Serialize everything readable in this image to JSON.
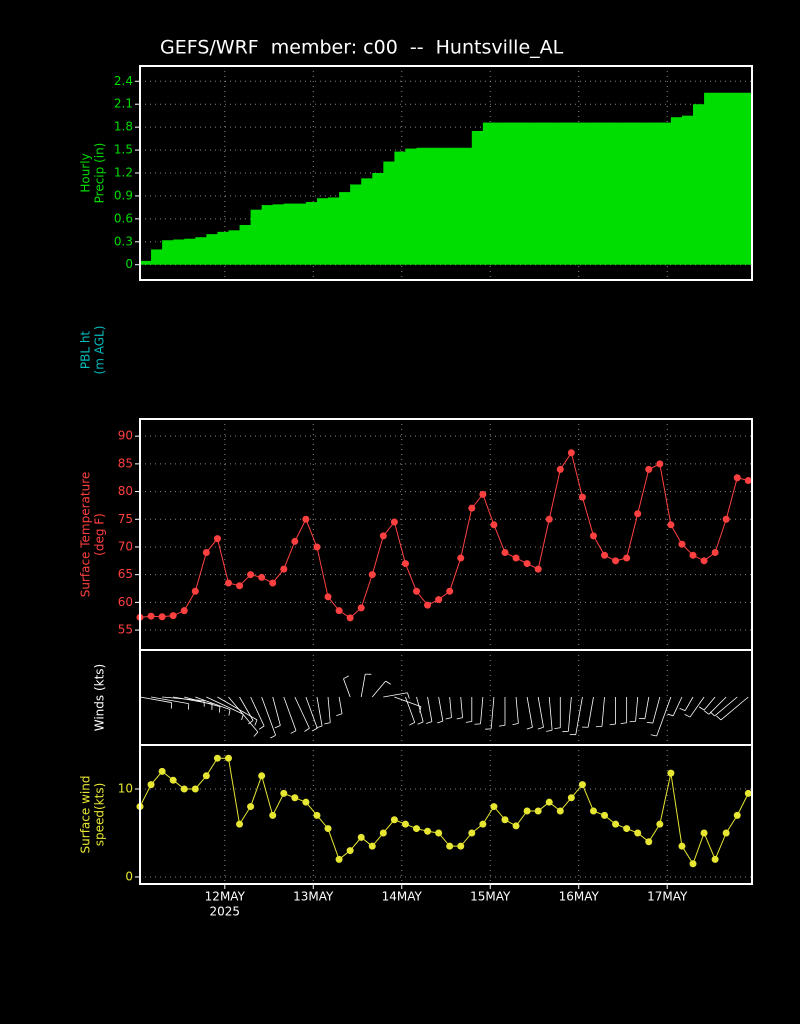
{
  "title": "GEFS/WRF  member: c00  --  Huntsville_AL",
  "chart_data": [
    {
      "type": "step",
      "ylabel": [
        "Hourly",
        "Precip (in)"
      ],
      "color": "#00dd00",
      "x": [
        1,
        4,
        7,
        10,
        13,
        16,
        19,
        22,
        25,
        28,
        31,
        34,
        37,
        40,
        43,
        46,
        49,
        52,
        55,
        58,
        61,
        64,
        67,
        70,
        73,
        76,
        79,
        82,
        85,
        88,
        91,
        94,
        97,
        100,
        103,
        106,
        109,
        112,
        115,
        118,
        121,
        124,
        127,
        130,
        133,
        136,
        139,
        142,
        145,
        148,
        151,
        154,
        157,
        160,
        163,
        166
      ],
      "values": [
        0.05,
        0.2,
        0.32,
        0.33,
        0.34,
        0.36,
        0.4,
        0.43,
        0.45,
        0.52,
        0.72,
        0.78,
        0.79,
        0.8,
        0.8,
        0.82,
        0.87,
        0.88,
        0.95,
        1.05,
        1.13,
        1.2,
        1.35,
        1.48,
        1.52,
        1.53,
        1.53,
        1.53,
        1.53,
        1.53,
        1.75,
        1.86,
        1.86,
        1.86,
        1.86,
        1.86,
        1.86,
        1.86,
        1.86,
        1.86,
        1.86,
        1.86,
        1.86,
        1.86,
        1.86,
        1.86,
        1.86,
        1.86,
        1.93,
        1.95,
        2.1,
        2.25,
        2.25,
        2.25,
        2.25,
        2.25
      ],
      "ylim": [
        -0.2,
        2.6
      ],
      "yticks": [
        0,
        0.3,
        0.6,
        0.9,
        1.2,
        1.5,
        1.8,
        2.1,
        2.4
      ]
    },
    {
      "type": "blank",
      "ylabel": [
        "PBL ht",
        "(m AGL)"
      ],
      "color": "#00bbbb"
    },
    {
      "type": "line",
      "ylabel": [
        "Surface Temperature",
        "(deg F)"
      ],
      "color": "#ff4040",
      "x": [
        1,
        4,
        7,
        10,
        13,
        16,
        19,
        22,
        25,
        28,
        31,
        34,
        37,
        40,
        43,
        46,
        49,
        52,
        55,
        58,
        61,
        64,
        67,
        70,
        73,
        76,
        79,
        82,
        85,
        88,
        91,
        94,
        97,
        100,
        103,
        106,
        109,
        112,
        115,
        118,
        121,
        124,
        127,
        130,
        133,
        136,
        139,
        142,
        145,
        148,
        151,
        154,
        157,
        160,
        163,
        166
      ],
      "values": [
        57.3,
        57.5,
        57.4,
        57.6,
        58.5,
        62,
        69,
        71.5,
        63.5,
        63,
        65,
        64.5,
        63.5,
        66,
        71,
        75,
        70,
        61,
        58.5,
        57.2,
        59,
        65,
        72,
        74.5,
        67,
        62,
        59.5,
        60.5,
        62,
        68,
        77,
        79.5,
        74,
        69,
        68,
        67,
        66,
        75,
        84,
        87,
        79,
        72,
        68.5,
        67.5,
        68,
        76,
        84,
        85,
        74,
        70.5,
        68.5,
        67.5,
        69,
        75,
        82.5,
        82
      ],
      "ylim": [
        51.4,
        93.1
      ],
      "yticks": [
        55,
        60,
        65,
        70,
        75,
        80,
        85,
        90
      ]
    },
    {
      "type": "barbs",
      "ylabel": [
        "Winds (kts)"
      ],
      "color": "#ffffff",
      "x": [
        1,
        4,
        7,
        10,
        13,
        16,
        19,
        22,
        25,
        28,
        31,
        34,
        37,
        40,
        43,
        46,
        49,
        52,
        55,
        58,
        61,
        64,
        67,
        70,
        73,
        76,
        79,
        82,
        85,
        88,
        91,
        94,
        97,
        100,
        103,
        106,
        109,
        112,
        115,
        118,
        121,
        124,
        127,
        130,
        133,
        136,
        139,
        142,
        145,
        148,
        151,
        154,
        157,
        160,
        163,
        166
      ],
      "values": [
        100,
        100,
        95,
        100,
        105,
        110,
        115,
        120,
        140,
        150,
        155,
        160,
        165,
        160,
        155,
        160,
        170,
        175,
        170,
        340,
        10,
        40,
        80,
        110,
        160,
        165,
        170,
        170,
        175,
        175,
        180,
        185,
        185,
        180,
        175,
        170,
        170,
        175,
        180,
        185,
        190,
        190,
        185,
        180,
        180,
        185,
        190,
        195,
        200,
        205,
        210,
        215,
        220,
        225,
        230,
        230
      ]
    },
    {
      "type": "line",
      "ylabel": [
        "Surface wind",
        "speed(kts)"
      ],
      "color": "#e6e633",
      "x": [
        1,
        4,
        7,
        10,
        13,
        16,
        19,
        22,
        25,
        28,
        31,
        34,
        37,
        40,
        43,
        46,
        49,
        52,
        55,
        58,
        61,
        64,
        67,
        70,
        73,
        76,
        79,
        82,
        85,
        88,
        91,
        94,
        97,
        100,
        103,
        106,
        109,
        112,
        115,
        118,
        121,
        124,
        127,
        130,
        133,
        136,
        139,
        142,
        145,
        148,
        151,
        154,
        157,
        160,
        163,
        166
      ],
      "values": [
        8,
        10.5,
        12,
        11,
        10,
        10,
        11.5,
        13.5,
        13.5,
        6,
        8,
        11.5,
        7,
        9.5,
        9,
        8.5,
        7,
        5.5,
        2,
        3,
        4.5,
        3.5,
        5,
        6.5,
        6,
        5.5,
        5.2,
        5,
        3.5,
        3.5,
        5,
        6,
        8,
        6.5,
        5.8,
        7.5,
        7.5,
        8.5,
        7.5,
        9,
        10.5,
        7.5,
        7,
        6,
        5.5,
        5,
        4,
        6,
        11.8,
        3.5,
        1.5,
        5,
        2,
        5,
        7,
        9.5
      ],
      "ylim": [
        -0.8,
        15
      ],
      "yticks": [
        0,
        10
      ],
      "xlim": [
        1,
        167
      ],
      "xticks": [
        {
          "value": 24,
          "label": "12MAY"
        },
        {
          "value": 48,
          "label": "13MAY"
        },
        {
          "value": 72,
          "label": "14MAY"
        },
        {
          "value": 96,
          "label": "15MAY"
        },
        {
          "value": 120,
          "label": "16MAY"
        },
        {
          "value": 144,
          "label": "17MAY"
        }
      ],
      "xsublabel": "2025"
    }
  ]
}
